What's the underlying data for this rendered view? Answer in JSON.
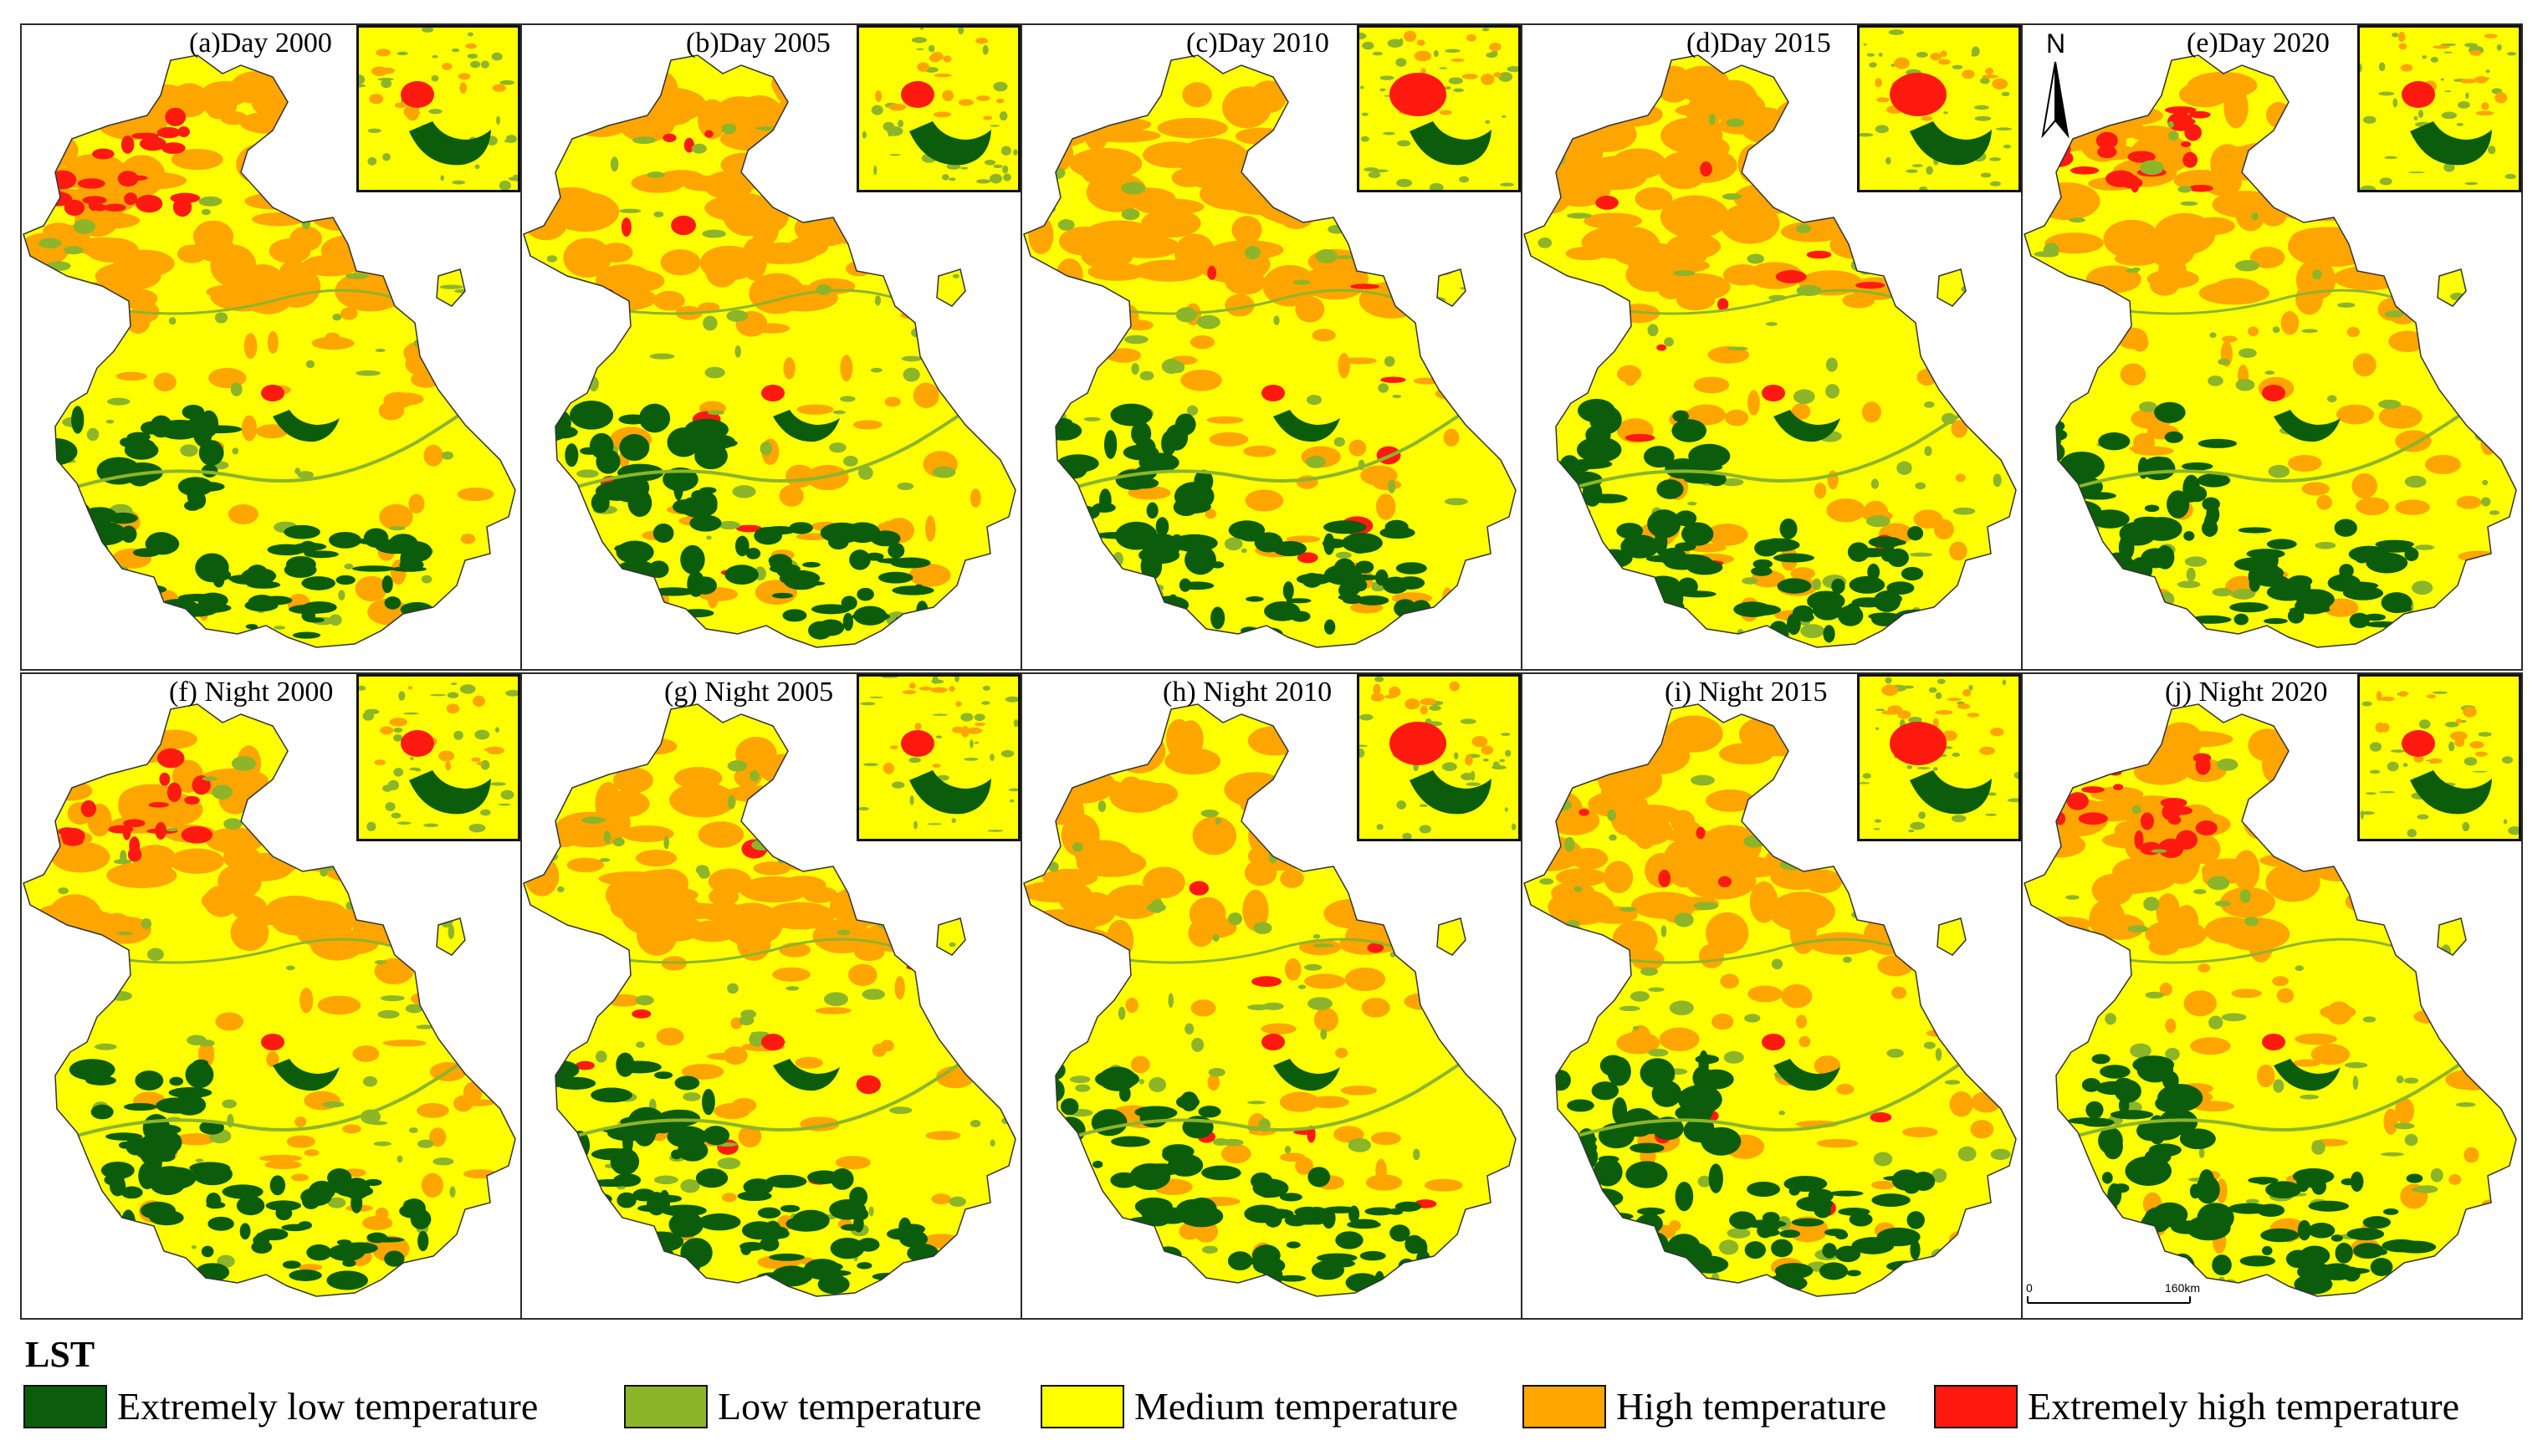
{
  "colors": {
    "extremely_low": "#0b5d0b",
    "low": "#8db52a",
    "medium": "#ffff00",
    "high": "#ffa500",
    "extremely_high": "#ff1a10"
  },
  "panels": [
    {
      "label": "(a)Day 2000"
    },
    {
      "label": "(b)Day 2005"
    },
    {
      "label": "(c)Day 2010"
    },
    {
      "label": "(d)Day 2015"
    },
    {
      "label": "(e)Day 2020"
    },
    {
      "label": "(f) Night 2000"
    },
    {
      "label": "(g) Night 2005"
    },
    {
      "label": "(h) Night 2010"
    },
    {
      "label": "(i) Night 2015"
    },
    {
      "label": "(j) Night 2020"
    }
  ],
  "north_arrow": {
    "letter": "N"
  },
  "scale_bar": {
    "start": "0",
    "end": "160km"
  },
  "legend": {
    "title": "LST",
    "items": [
      {
        "label": "Extremely low temperature",
        "color": "#0b5d0b"
      },
      {
        "label": "Low temperature",
        "color": "#8db52a"
      },
      {
        "label": "Medium temperature",
        "color": "#ffff00"
      },
      {
        "label": "High temperature",
        "color": "#ffa500"
      },
      {
        "label": "Extremely high temperature",
        "color": "#ff1a10"
      }
    ]
  }
}
